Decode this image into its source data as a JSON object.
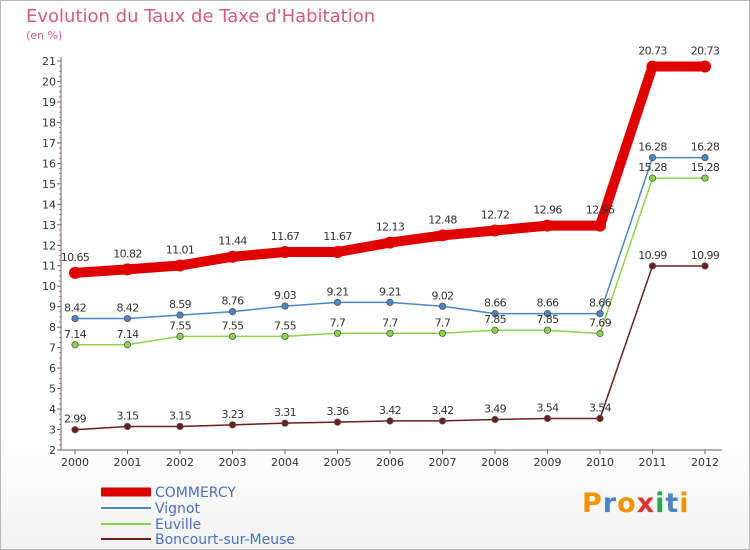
{
  "chart_data": {
    "type": "line",
    "title": "Evolution du Taux de Taxe d'Habitation",
    "ylabel": "(en %)",
    "xlabel": "",
    "categories": [
      "2000",
      "2001",
      "2002",
      "2003",
      "2004",
      "2005",
      "2006",
      "2007",
      "2008",
      "2009",
      "2010",
      "2011",
      "2012"
    ],
    "ylim": [
      2,
      21
    ],
    "yticks": [
      "2",
      "3",
      "4",
      "5",
      "6",
      "7",
      "8",
      "9",
      "10",
      "11",
      "12",
      "13",
      "14",
      "15",
      "16",
      "17",
      "18",
      "19",
      "20",
      "21"
    ],
    "grid": false,
    "series": [
      {
        "name": "COMMERCY",
        "color": "#e00000",
        "values": [
          10.65,
          10.82,
          11.01,
          11.44,
          11.67,
          11.67,
          12.13,
          12.48,
          12.72,
          12.96,
          12.96,
          20.73,
          20.73
        ],
        "labels": [
          "10.65",
          "10.82",
          "11.01",
          "11.44",
          "11.67",
          "11.67",
          "12.13",
          "12.48",
          "12.72",
          "12.96",
          "12.96",
          "20.73",
          "20.73"
        ]
      },
      {
        "name": "Vignot",
        "color": "#4a86c6",
        "values": [
          8.42,
          8.42,
          8.59,
          8.76,
          9.03,
          9.21,
          9.21,
          9.02,
          8.66,
          8.66,
          8.66,
          16.28,
          16.28
        ],
        "labels": [
          "8.42",
          "8.42",
          "8.59",
          "8.76",
          "9.03",
          "9.21",
          "9.21",
          "9.02",
          "8.66",
          "8.66",
          "8.66",
          "16.28",
          "16.28"
        ]
      },
      {
        "name": "Euville",
        "color": "#88d44a",
        "values": [
          7.14,
          7.14,
          7.55,
          7.55,
          7.55,
          7.7,
          7.7,
          7.7,
          7.85,
          7.85,
          7.69,
          15.28,
          15.28
        ],
        "labels": [
          "7.14",
          "7.14",
          "7.55",
          "7.55",
          "7.55",
          "7.7",
          "7.7",
          "7.7",
          "7.85",
          "7.85",
          "7.69",
          "15.28",
          "15.28"
        ]
      },
      {
        "name": "Boncourt-sur-Meuse",
        "color": "#6e1c1c",
        "values": [
          2.99,
          3.15,
          3.15,
          3.23,
          3.31,
          3.36,
          3.42,
          3.42,
          3.49,
          3.54,
          3.54,
          10.99,
          10.99
        ],
        "labels": [
          "2.99",
          "3.15",
          "3.15",
          "3.23",
          "3.31",
          "3.36",
          "3.42",
          "3.42",
          "3.49",
          "3.54",
          "3.54",
          "10.99",
          "10.99"
        ]
      }
    ]
  },
  "logo": {
    "text": "Proxiti",
    "letters": [
      "P",
      "r",
      "o",
      "x",
      "i",
      "t",
      "i"
    ],
    "colors": [
      "#f39200",
      "#4a86c6",
      "#f39200",
      "#e03030",
      "#2aa845",
      "#4a86c6",
      "#f39200"
    ]
  }
}
